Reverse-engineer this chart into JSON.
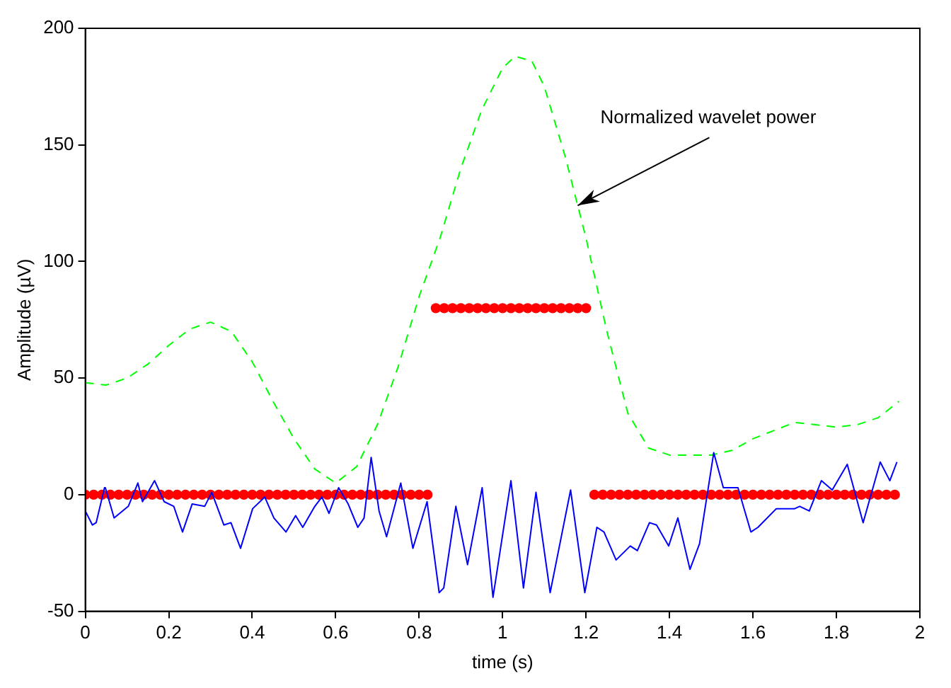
{
  "chart_data": {
    "type": "line",
    "xlabel": "time (s)",
    "ylabel": "Amplitude (µV)",
    "xlim": [
      0,
      2
    ],
    "xticks": [
      0,
      0.2,
      0.4,
      0.6,
      0.8,
      1,
      1.2,
      1.4,
      1.6,
      1.8,
      2
    ],
    "ylim": [
      -50,
      200
    ],
    "yticks": [
      -50,
      0,
      50,
      100,
      150,
      200
    ],
    "grid": false,
    "legend": false,
    "annotations": [
      {
        "text": "Normalized wavelet power",
        "x": 1.18,
        "y": 124
      }
    ],
    "series": [
      {
        "color": "#0000ff",
        "line_style": "solid",
        "marker": "none",
        "x": [
          0,
          0.017,
          0.026,
          0.046,
          0.048,
          0.069,
          0.103,
          0.126,
          0.137,
          0.166,
          0.189,
          0.212,
          0.233,
          0.256,
          0.286,
          0.303,
          0.332,
          0.349,
          0.372,
          0.401,
          0.43,
          0.452,
          0.481,
          0.504,
          0.521,
          0.55,
          0.567,
          0.584,
          0.607,
          0.63,
          0.653,
          0.668,
          0.685,
          0.704,
          0.722,
          0.756,
          0.785,
          0.819,
          0.848,
          0.859,
          0.888,
          0.916,
          0.951,
          0.977,
          1.02,
          1.05,
          1.08,
          1.114,
          1.163,
          1.197,
          1.226,
          1.243,
          1.272,
          1.306,
          1.323,
          1.352,
          1.369,
          1.398,
          1.42,
          1.449,
          1.472,
          1.506,
          1.529,
          1.564,
          1.595,
          1.612,
          1.656,
          1.7,
          1.712,
          1.735,
          1.764,
          1.79,
          1.826,
          1.864,
          1.905,
          1.928,
          1.945
        ],
        "values": [
          -7,
          -13,
          -12,
          3,
          3,
          -10,
          -5,
          5,
          -3,
          6,
          -3,
          -5,
          -16,
          -4,
          -5,
          1,
          -13,
          -12,
          -23,
          -6,
          -1,
          -10,
          -16,
          -9,
          -14,
          -5,
          -1,
          -8,
          3,
          -4,
          -14,
          -10,
          16,
          -7,
          -18,
          5,
          -23,
          -3,
          -42,
          -40,
          -5,
          -30,
          3,
          -44,
          6,
          -40,
          1,
          -42,
          2,
          -42,
          -14,
          -16,
          -28,
          -22,
          -24,
          -12,
          -13,
          -22,
          -10,
          -32,
          -21,
          18,
          3,
          3,
          -16,
          -14,
          -6,
          -6,
          -5,
          -7,
          6,
          2,
          13,
          -12,
          14,
          6,
          14
        ]
      },
      {
        "color": "#00ff00",
        "line_style": "dashed",
        "marker": "none",
        "x": [
          0,
          0.05,
          0.1,
          0.15,
          0.2,
          0.25,
          0.3,
          0.35,
          0.4,
          0.45,
          0.5,
          0.55,
          0.6,
          0.65,
          0.7,
          0.75,
          0.8,
          0.85,
          0.9,
          0.95,
          1,
          1.03,
          1.07,
          1.1,
          1.15,
          1.18,
          1.2,
          1.25,
          1.3,
          1.35,
          1.4,
          1.5,
          1.55,
          1.6,
          1.7,
          1.8,
          1.85,
          1.9,
          1.95
        ],
        "values": [
          48,
          47,
          50,
          56,
          64,
          71,
          74,
          70,
          57,
          40,
          24,
          11,
          5,
          12,
          30,
          55,
          85,
          110,
          140,
          165,
          183,
          188,
          186,
          175,
          145,
          124,
          110,
          70,
          35,
          20,
          17,
          17,
          19,
          24,
          31,
          29,
          30,
          33,
          40
        ]
      },
      {
        "type": "scatter",
        "color": "#ff0000",
        "marker": "circle",
        "x": [
          0,
          0.02,
          0.04,
          0.06,
          0.08,
          0.1,
          0.12,
          0.14,
          0.16,
          0.18,
          0.2,
          0.22,
          0.24,
          0.26,
          0.28,
          0.3,
          0.32,
          0.34,
          0.36,
          0.38,
          0.4,
          0.42,
          0.44,
          0.46,
          0.48,
          0.5,
          0.52,
          0.54,
          0.56,
          0.58,
          0.6,
          0.62,
          0.64,
          0.66,
          0.68,
          0.7,
          0.72,
          0.74,
          0.76,
          0.78,
          0.8,
          0.82
        ],
        "values": [
          0,
          0,
          0,
          0,
          0,
          0,
          0,
          0,
          0,
          0,
          0,
          0,
          0,
          0,
          0,
          0,
          0,
          0,
          0,
          0,
          0,
          0,
          0,
          0,
          0,
          0,
          0,
          0,
          0,
          0,
          0,
          0,
          0,
          0,
          0,
          0,
          0,
          0,
          0,
          0,
          0,
          0
        ]
      },
      {
        "type": "scatter",
        "color": "#ff0000",
        "marker": "circle",
        "x": [
          0.84,
          0.86,
          0.88,
          0.9,
          0.92,
          0.94,
          0.96,
          0.98,
          1,
          1.02,
          1.04,
          1.06,
          1.08,
          1.1,
          1.12,
          1.14,
          1.16,
          1.18,
          1.2
        ],
        "values": [
          80,
          80,
          80,
          80,
          80,
          80,
          80,
          80,
          80,
          80,
          80,
          80,
          80,
          80,
          80,
          80,
          80,
          80,
          80
        ]
      },
      {
        "type": "scatter",
        "color": "#ff0000",
        "marker": "circle",
        "x": [
          1.22,
          1.24,
          1.26,
          1.28,
          1.3,
          1.32,
          1.34,
          1.36,
          1.38,
          1.4,
          1.42,
          1.44,
          1.46,
          1.48,
          1.5,
          1.52,
          1.54,
          1.56,
          1.58,
          1.6,
          1.62,
          1.64,
          1.66,
          1.68,
          1.7,
          1.72,
          1.74,
          1.76,
          1.78,
          1.8,
          1.82,
          1.84,
          1.86,
          1.88,
          1.9,
          1.92,
          1.94
        ],
        "values": [
          0,
          0,
          0,
          0,
          0,
          0,
          0,
          0,
          0,
          0,
          0,
          0,
          0,
          0,
          0,
          0,
          0,
          0,
          0,
          0,
          0,
          0,
          0,
          0,
          0,
          0,
          0,
          0,
          0,
          0,
          0,
          0,
          0,
          0,
          0,
          0,
          0
        ]
      }
    ]
  }
}
